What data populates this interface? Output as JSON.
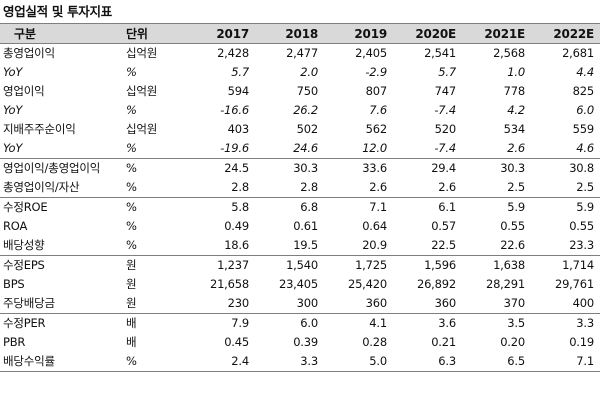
{
  "title": "영업실적 및 투자지표",
  "header": {
    "label": "구분",
    "unit": "단위",
    "years": [
      "2017",
      "2018",
      "2019",
      "2020E",
      "2021E",
      "2022E"
    ]
  },
  "rows": [
    {
      "label": "총영업이익",
      "unit": "십억원",
      "values": [
        "2,428",
        "2,477",
        "2,405",
        "2,541",
        "2,568",
        "2,681"
      ]
    },
    {
      "label": "YoY",
      "unit": "%",
      "values": [
        "5.7",
        "2.0",
        "-2.9",
        "5.7",
        "1.0",
        "4.4"
      ]
    },
    {
      "label": "영업이익",
      "unit": "십억원",
      "values": [
        "594",
        "750",
        "807",
        "747",
        "778",
        "825"
      ]
    },
    {
      "label": "YoY",
      "unit": "%",
      "values": [
        "-16.6",
        "26.2",
        "7.6",
        "-7.4",
        "4.2",
        "6.0"
      ]
    },
    {
      "label": "지배주주순이익",
      "unit": "십억원",
      "values": [
        "403",
        "502",
        "562",
        "520",
        "534",
        "559"
      ]
    },
    {
      "label": "YoY",
      "unit": "%",
      "values": [
        "-19.6",
        "24.6",
        "12.0",
        "-7.4",
        "2.6",
        "4.6"
      ]
    },
    {
      "label": "영업이익/총영업이익",
      "unit": "%",
      "values": [
        "24.5",
        "30.3",
        "33.6",
        "29.4",
        "30.3",
        "30.8"
      ]
    },
    {
      "label": "총영업이익/자산",
      "unit": "%",
      "values": [
        "2.8",
        "2.8",
        "2.6",
        "2.6",
        "2.5",
        "2.5"
      ]
    },
    {
      "label": "수정ROE",
      "unit": "%",
      "values": [
        "5.8",
        "6.8",
        "7.1",
        "6.1",
        "5.9",
        "5.9"
      ]
    },
    {
      "label": "ROA",
      "unit": "%",
      "values": [
        "0.49",
        "0.61",
        "0.64",
        "0.57",
        "0.55",
        "0.55"
      ]
    },
    {
      "label": "배당성향",
      "unit": "%",
      "values": [
        "18.6",
        "19.5",
        "20.9",
        "22.5",
        "22.6",
        "23.3"
      ]
    },
    {
      "label": "수정EPS",
      "unit": "원",
      "values": [
        "1,237",
        "1,540",
        "1,725",
        "1,596",
        "1,638",
        "1,714"
      ]
    },
    {
      "label": "BPS",
      "unit": "원",
      "values": [
        "21,658",
        "23,405",
        "25,420",
        "26,892",
        "28,291",
        "29,761"
      ]
    },
    {
      "label": "주당배당금",
      "unit": "원",
      "values": [
        "230",
        "300",
        "360",
        "360",
        "370",
        "400"
      ]
    },
    {
      "label": "수정PER",
      "unit": "배",
      "values": [
        "7.9",
        "6.0",
        "4.1",
        "3.6",
        "3.5",
        "3.3"
      ]
    },
    {
      "label": "PBR",
      "unit": "배",
      "values": [
        "0.45",
        "0.39",
        "0.28",
        "0.21",
        "0.20",
        "0.19"
      ]
    },
    {
      "label": "배당수익률",
      "unit": "%",
      "values": [
        "2.4",
        "3.3",
        "5.0",
        "6.3",
        "6.5",
        "7.1"
      ]
    }
  ]
}
